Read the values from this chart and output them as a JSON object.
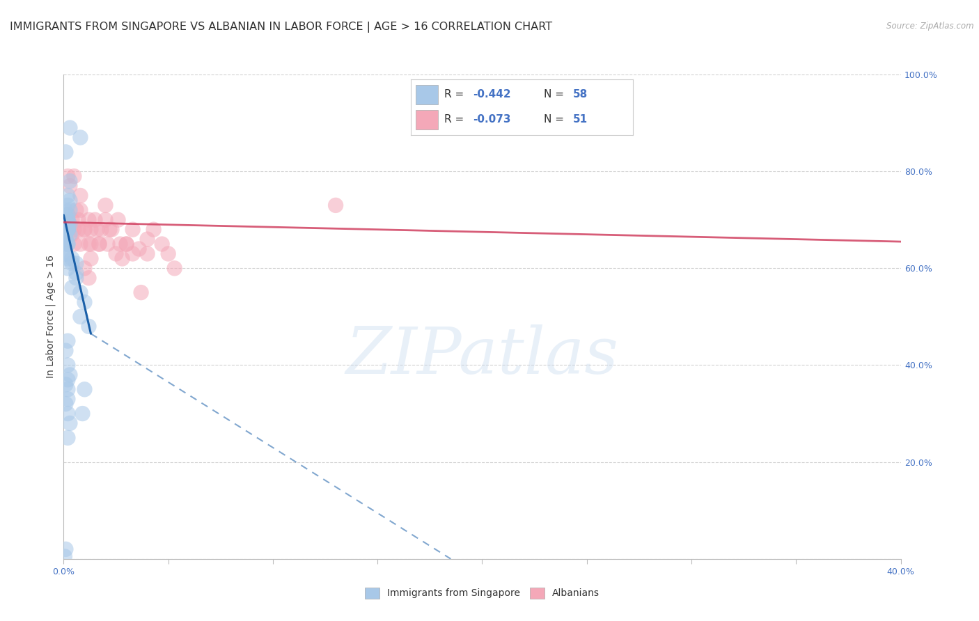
{
  "title": "IMMIGRANTS FROM SINGAPORE VS ALBANIAN IN LABOR FORCE | AGE > 16 CORRELATION CHART",
  "source": "Source: ZipAtlas.com",
  "ylabel": "In Labor Force | Age > 16",
  "xlim": [
    0.0,
    0.4
  ],
  "ylim": [
    0.0,
    1.0
  ],
  "x_ticks": [
    0.0,
    0.05,
    0.1,
    0.15,
    0.2,
    0.25,
    0.3,
    0.35,
    0.4
  ],
  "y_ticks": [
    0.0,
    0.2,
    0.4,
    0.6,
    0.8,
    1.0
  ],
  "y_tick_labels": [
    "",
    "20.0%",
    "40.0%",
    "60.0%",
    "80.0%",
    "100.0%"
  ],
  "singapore_color": "#a8c8e8",
  "albanian_color": "#f4a8b8",
  "singapore_line_color": "#1a5fa8",
  "albanian_line_color": "#d04060",
  "legend_R_singapore": "-0.442",
  "legend_N_singapore": "58",
  "legend_R_albanian": "-0.073",
  "legend_N_albanian": "51",
  "singapore_label": "Immigrants from Singapore",
  "albanian_label": "Albanians",
  "watermark": "ZIPatlas",
  "background_color": "#ffffff",
  "grid_color": "#cccccc",
  "title_fontsize": 11.5,
  "axis_label_fontsize": 10,
  "tick_fontsize": 9,
  "legend_fontsize": 11,
  "sg_x": [
    0.001,
    0.003,
    0.008,
    0.002,
    0.003,
    0.001,
    0.002,
    0.002,
    0.003,
    0.001,
    0.002,
    0.003,
    0.002,
    0.002,
    0.001,
    0.002,
    0.001,
    0.002,
    0.002,
    0.003,
    0.001,
    0.002,
    0.002,
    0.001,
    0.002,
    0.003,
    0.002,
    0.002,
    0.001,
    0.002,
    0.004,
    0.006,
    0.008,
    0.01,
    0.006,
    0.004,
    0.002,
    0.001,
    0.002,
    0.003,
    0.002,
    0.001,
    0.002,
    0.002,
    0.001,
    0.002,
    0.003,
    0.002,
    0.001,
    0.0005,
    0.001,
    0.002,
    0.004,
    0.006,
    0.008,
    0.012,
    0.01,
    0.009
  ],
  "sg_y": [
    0.84,
    0.89,
    0.87,
    0.75,
    0.78,
    0.72,
    0.73,
    0.68,
    0.74,
    0.71,
    0.69,
    0.67,
    0.7,
    0.68,
    0.66,
    0.71,
    0.65,
    0.68,
    0.7,
    0.69,
    0.67,
    0.65,
    0.68,
    0.66,
    0.69,
    0.72,
    0.68,
    0.65,
    0.63,
    0.6,
    0.62,
    0.58,
    0.55,
    0.53,
    0.61,
    0.56,
    0.45,
    0.43,
    0.4,
    0.38,
    0.37,
    0.36,
    0.35,
    0.33,
    0.32,
    0.3,
    0.28,
    0.25,
    0.02,
    0.005,
    0.63,
    0.62,
    0.61,
    0.59,
    0.5,
    0.48,
    0.35,
    0.3
  ],
  "al_x": [
    0.002,
    0.003,
    0.005,
    0.006,
    0.008,
    0.01,
    0.012,
    0.013,
    0.016,
    0.02,
    0.022,
    0.026,
    0.03,
    0.033,
    0.036,
    0.04,
    0.002,
    0.003,
    0.004,
    0.004,
    0.005,
    0.005,
    0.007,
    0.008,
    0.01,
    0.012,
    0.013,
    0.015,
    0.017,
    0.018,
    0.02,
    0.021,
    0.023,
    0.025,
    0.027,
    0.028,
    0.03,
    0.033,
    0.037,
    0.04,
    0.043,
    0.047,
    0.05,
    0.053,
    0.007,
    0.008,
    0.01,
    0.012,
    0.013,
    0.017,
    0.13
  ],
  "al_y": [
    0.79,
    0.77,
    0.79,
    0.72,
    0.75,
    0.68,
    0.7,
    0.65,
    0.68,
    0.73,
    0.68,
    0.7,
    0.65,
    0.68,
    0.64,
    0.66,
    0.71,
    0.69,
    0.67,
    0.7,
    0.68,
    0.65,
    0.7,
    0.72,
    0.68,
    0.65,
    0.68,
    0.7,
    0.65,
    0.68,
    0.7,
    0.65,
    0.68,
    0.63,
    0.65,
    0.62,
    0.65,
    0.63,
    0.55,
    0.63,
    0.68,
    0.65,
    0.63,
    0.6,
    0.68,
    0.65,
    0.6,
    0.58,
    0.62,
    0.65,
    0.73
  ]
}
